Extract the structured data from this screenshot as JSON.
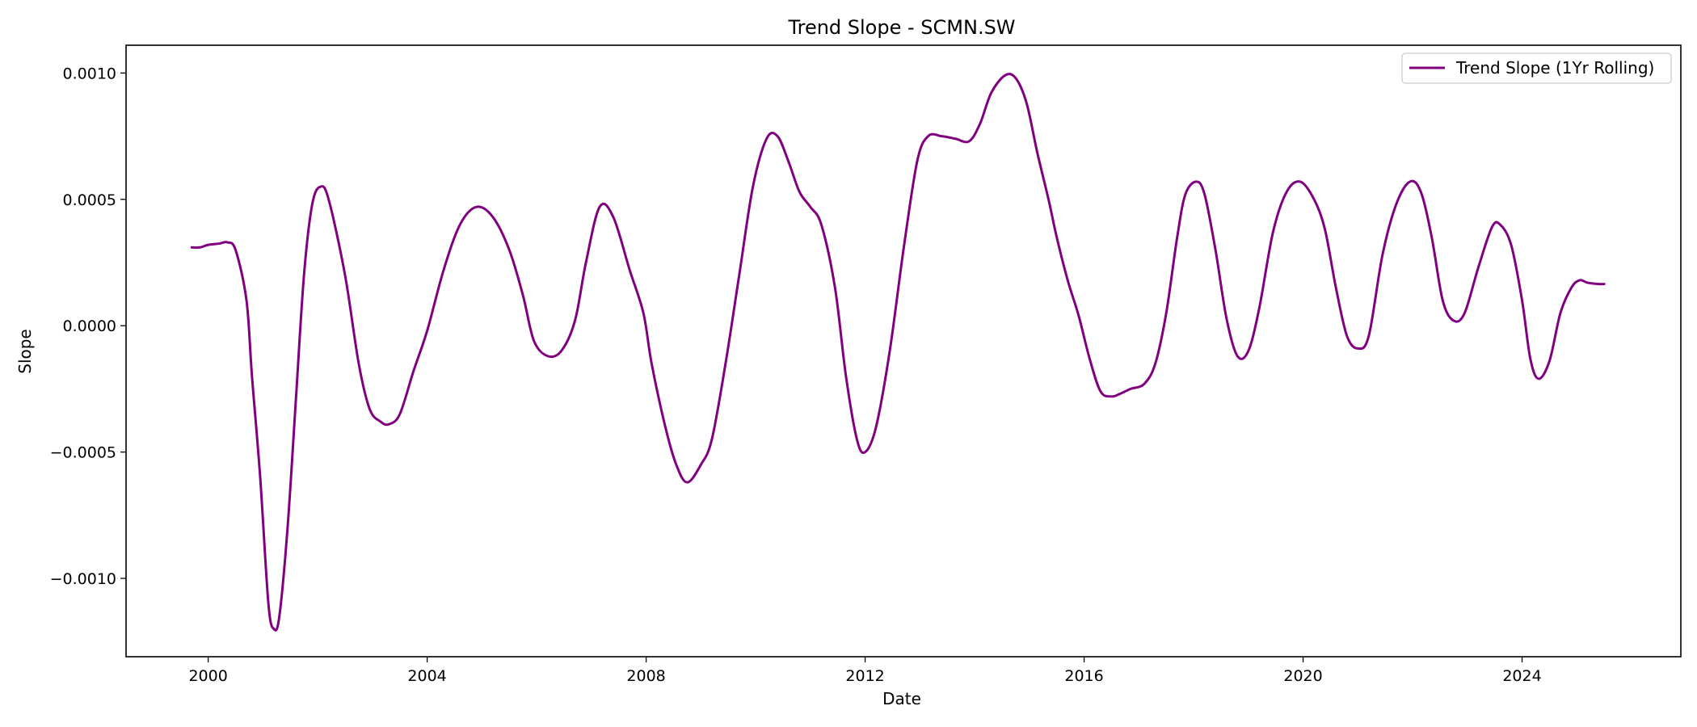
{
  "chart_data": {
    "type": "line",
    "title": "Trend Slope - SCMN.SW",
    "xlabel": "Date",
    "ylabel": "Slope",
    "xlim": [
      1998.5,
      2026.9
    ],
    "ylim": [
      -0.00131,
      0.00111
    ],
    "x_ticks": [
      2000,
      2004,
      2008,
      2012,
      2016,
      2020,
      2024
    ],
    "x_tick_labels": [
      "2000",
      "2004",
      "2008",
      "2012",
      "2016",
      "2020",
      "2024"
    ],
    "y_ticks": [
      -0.001,
      -0.0005,
      0.0,
      0.0005,
      0.001
    ],
    "y_tick_labels": [
      "−0.0010",
      "−0.0005",
      "0.0000",
      "0.0005",
      "0.0010"
    ],
    "legend_position": "top-right",
    "grid": false,
    "series": [
      {
        "name": "Trend Slope (1Yr Rolling)",
        "color": "#800080",
        "points": [
          [
            1999.7,
            0.00031
          ],
          [
            1999.85,
            0.00031
          ],
          [
            2000.0,
            0.00032
          ],
          [
            2000.2,
            0.000325
          ],
          [
            2000.35,
            0.00033
          ],
          [
            2000.5,
            0.0003
          ],
          [
            2000.7,
            0.0001
          ],
          [
            2000.8,
            -0.0002
          ],
          [
            2000.95,
            -0.0006
          ],
          [
            2001.1,
            -0.0011
          ],
          [
            2001.2,
            -0.0012
          ],
          [
            2001.3,
            -0.00115
          ],
          [
            2001.45,
            -0.0008
          ],
          [
            2001.6,
            -0.0003
          ],
          [
            2001.75,
            0.0002
          ],
          [
            2001.9,
            0.00048
          ],
          [
            2002.05,
            0.00055
          ],
          [
            2002.2,
            0.0005
          ],
          [
            2002.5,
            0.0002
          ],
          [
            2002.75,
            -0.00015
          ],
          [
            2002.95,
            -0.00033
          ],
          [
            2003.15,
            -0.00038
          ],
          [
            2003.3,
            -0.00039
          ],
          [
            2003.5,
            -0.00035
          ],
          [
            2003.75,
            -0.00018
          ],
          [
            2004.0,
            -2e-05
          ],
          [
            2004.3,
            0.00022
          ],
          [
            2004.6,
            0.0004
          ],
          [
            2004.9,
            0.00047
          ],
          [
            2005.2,
            0.00043
          ],
          [
            2005.5,
            0.0003
          ],
          [
            2005.75,
            0.00012
          ],
          [
            2005.95,
            -6e-05
          ],
          [
            2006.2,
            -0.00012
          ],
          [
            2006.45,
            -0.0001
          ],
          [
            2006.7,
            2e-05
          ],
          [
            2006.9,
            0.00025
          ],
          [
            2007.15,
            0.00047
          ],
          [
            2007.4,
            0.00043
          ],
          [
            2007.7,
            0.00022
          ],
          [
            2007.95,
            5e-05
          ],
          [
            2008.1,
            -0.00015
          ],
          [
            2008.35,
            -0.0004
          ],
          [
            2008.55,
            -0.00055
          ],
          [
            2008.75,
            -0.00062
          ],
          [
            2009.0,
            -0.00055
          ],
          [
            2009.2,
            -0.00045
          ],
          [
            2009.45,
            -0.00015
          ],
          [
            2009.7,
            0.0002
          ],
          [
            2009.95,
            0.00055
          ],
          [
            2010.2,
            0.00074
          ],
          [
            2010.4,
            0.00075
          ],
          [
            2010.6,
            0.00065
          ],
          [
            2010.8,
            0.00053
          ],
          [
            2011.0,
            0.00047
          ],
          [
            2011.2,
            0.0004
          ],
          [
            2011.45,
            0.00015
          ],
          [
            2011.65,
            -0.0002
          ],
          [
            2011.85,
            -0.00045
          ],
          [
            2012.0,
            -0.0005
          ],
          [
            2012.2,
            -0.0004
          ],
          [
            2012.45,
            -0.0001
          ],
          [
            2012.7,
            0.0003
          ],
          [
            2012.95,
            0.00065
          ],
          [
            2013.15,
            0.00075
          ],
          [
            2013.4,
            0.00075
          ],
          [
            2013.65,
            0.00074
          ],
          [
            2013.9,
            0.00073
          ],
          [
            2014.1,
            0.0008
          ],
          [
            2014.3,
            0.00092
          ],
          [
            2014.55,
            0.00099
          ],
          [
            2014.75,
            0.00098
          ],
          [
            2014.95,
            0.00088
          ],
          [
            2015.15,
            0.00068
          ],
          [
            2015.35,
            0.0005
          ],
          [
            2015.5,
            0.00035
          ],
          [
            2015.7,
            0.00018
          ],
          [
            2015.9,
            4e-05
          ],
          [
            2016.1,
            -0.00013
          ],
          [
            2016.3,
            -0.00026
          ],
          [
            2016.5,
            -0.00028
          ],
          [
            2016.65,
            -0.00027
          ],
          [
            2016.85,
            -0.00025
          ],
          [
            2017.1,
            -0.00023
          ],
          [
            2017.3,
            -0.00015
          ],
          [
            2017.5,
            5e-05
          ],
          [
            2017.7,
            0.00035
          ],
          [
            2017.85,
            0.00052
          ],
          [
            2018.05,
            0.00057
          ],
          [
            2018.2,
            0.00052
          ],
          [
            2018.4,
            0.0003
          ],
          [
            2018.6,
            3e-05
          ],
          [
            2018.8,
            -0.00012
          ],
          [
            2019.0,
            -0.0001
          ],
          [
            2019.2,
            7e-05
          ],
          [
            2019.45,
            0.00037
          ],
          [
            2019.7,
            0.00053
          ],
          [
            2019.95,
            0.00057
          ],
          [
            2020.2,
            0.0005
          ],
          [
            2020.4,
            0.00038
          ],
          [
            2020.6,
            0.00015
          ],
          [
            2020.8,
            -4e-05
          ],
          [
            2021.0,
            -9e-05
          ],
          [
            2021.2,
            -4e-05
          ],
          [
            2021.45,
            0.00028
          ],
          [
            2021.7,
            0.00048
          ],
          [
            2021.95,
            0.00057
          ],
          [
            2022.15,
            0.00053
          ],
          [
            2022.35,
            0.00035
          ],
          [
            2022.55,
            0.0001
          ],
          [
            2022.75,
            2e-05
          ],
          [
            2022.95,
            5e-05
          ],
          [
            2023.2,
            0.00023
          ],
          [
            2023.45,
            0.00039
          ],
          [
            2023.6,
            0.0004
          ],
          [
            2023.8,
            0.00032
          ],
          [
            2024.0,
            0.0001
          ],
          [
            2024.15,
            -0.00013
          ],
          [
            2024.3,
            -0.00021
          ],
          [
            2024.5,
            -0.00014
          ],
          [
            2024.7,
            5e-05
          ],
          [
            2024.9,
            0.00015
          ],
          [
            2025.05,
            0.00018
          ],
          [
            2025.2,
            0.00017
          ],
          [
            2025.4,
            0.000165
          ],
          [
            2025.5,
            0.000165
          ]
        ]
      }
    ]
  }
}
